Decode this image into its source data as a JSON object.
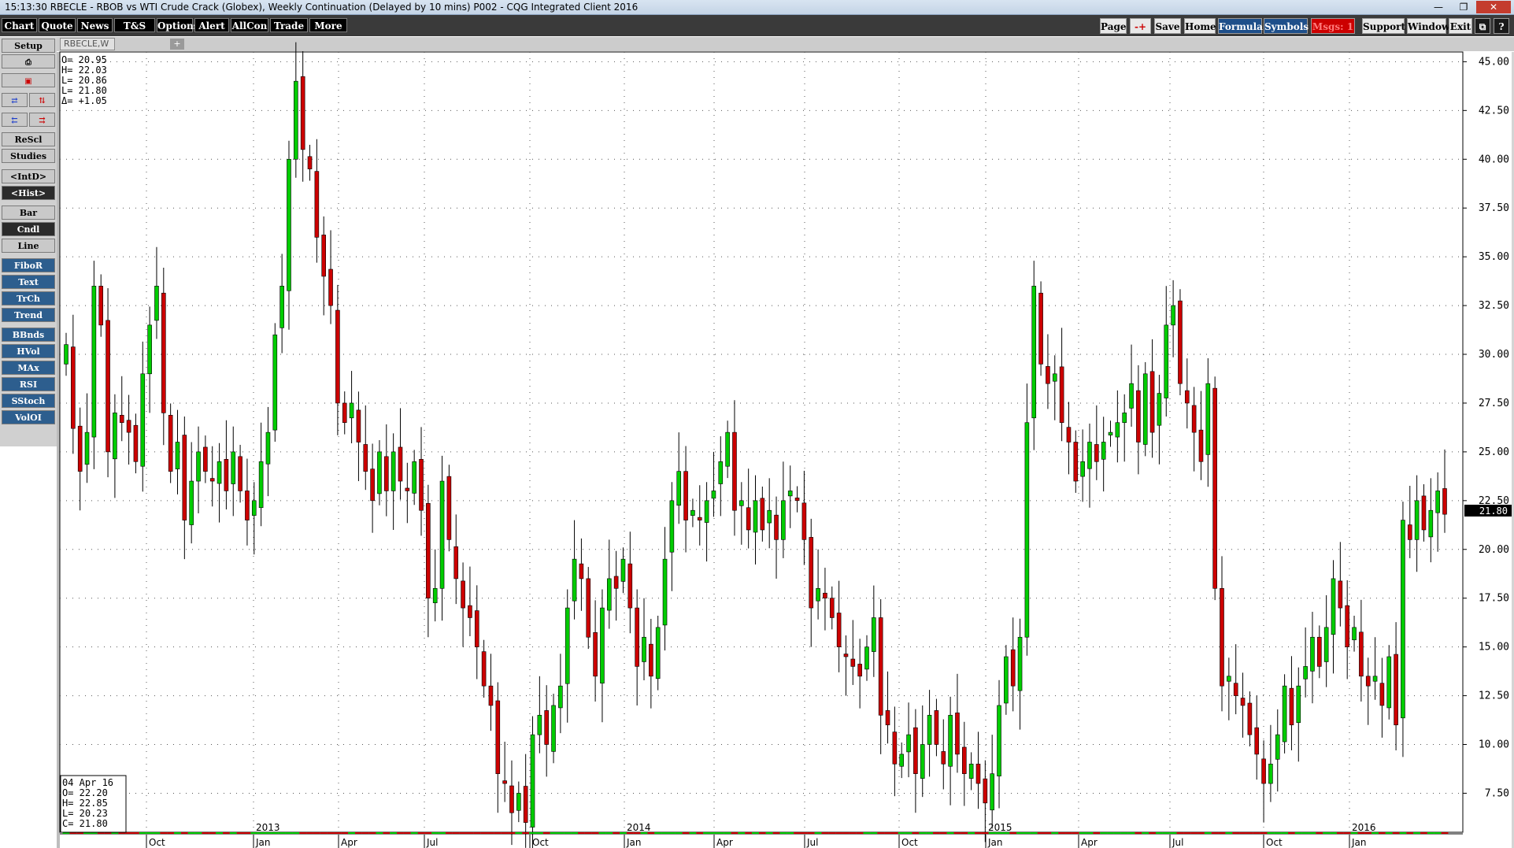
{
  "window": {
    "title": "15:13:30   RBECLE - RBOB vs WTI Crude Crack (Globex), Weekly Continuation (Delayed by 10 mins)   P002 - CQG Integrated Client 2016",
    "controls": [
      "minimize-icon",
      "restore-icon",
      "close-icon"
    ]
  },
  "menubar": {
    "left": [
      "Chart",
      "Quote",
      "News",
      "T&S",
      "Options",
      "Alert",
      "AllCon",
      "Trade",
      "More"
    ],
    "right": {
      "page": "Page",
      "arrows": "-+",
      "save": "Save",
      "home": "Home",
      "formula": "Formula",
      "symbols": "Symbols",
      "msgs": "Msgs: 1",
      "support": "Support",
      "window": "Window",
      "exit": "Exit",
      "restore": "⧉",
      "help": "?"
    }
  },
  "sidebar": {
    "setup": "Setup",
    "print_icon": "printer-icon",
    "rescl": "ReScl",
    "studies": "Studies",
    "intd": "<IntD>",
    "hist": "<Hist>",
    "bar": "Bar",
    "cndl": "Cndl",
    "line": "Line",
    "studies_list": [
      "FiboR",
      "Text",
      "TrCh",
      "Trend",
      "BBnds",
      "HVol",
      "MAx",
      "RSI",
      "SStoch",
      "VolOI"
    ]
  },
  "tab": {
    "symbol": "RBECLE,W",
    "add": "+"
  },
  "ohlc_top": {
    "open": "O=   20.95",
    "high": "H=   22.03",
    "low": "L=   20.86",
    "last": "L=   21.80",
    "delta": "Δ=   +1.05"
  },
  "ohlc_bottom": {
    "date": "04 Apr 16",
    "open": "O=      22.20",
    "high": "H=      22.85",
    "low": "L=      20.23",
    "close": "C=      21.80"
  },
  "last_price": "21.80",
  "colors": {
    "up": "#00cc00",
    "down": "#cc0000",
    "background": "#ffffff",
    "grid": "#000000"
  },
  "chart_data": {
    "type": "candlestick",
    "symbol": "RBECLE",
    "interval": "Weekly",
    "y_ticks": [
      "45.00",
      "42.50",
      "40.00",
      "37.50",
      "35.00",
      "32.50",
      "30.00",
      "27.50",
      "25.00",
      "22.50",
      "20.00",
      "17.50",
      "15.00",
      "12.50",
      "10.00",
      "7.50"
    ],
    "ylim": [
      5.5,
      45.5
    ],
    "x_months": [
      "Oct",
      "Jan",
      "Apr",
      "Jul",
      "Oct",
      "Jan",
      "Apr",
      "Jul",
      "Oct",
      "Jan",
      "Apr",
      "Jul",
      "Oct",
      "Jan"
    ],
    "x_years": [
      "2013",
      "2014",
      "2015",
      "2016"
    ],
    "closes": [
      30.5,
      26.2,
      24.0,
      26.0,
      33.5,
      31.5,
      25.0,
      27.0,
      26.5,
      26.0,
      24.5,
      29.0,
      31.5,
      33.5,
      27.0,
      24.0,
      25.5,
      21.5,
      23.5,
      25.0,
      24.0,
      23.5,
      24.5,
      23.0,
      25.0,
      23.0,
      21.5,
      22.5,
      24.5,
      26.0,
      31.0,
      33.5,
      40.0,
      44.0,
      40.5,
      39.5,
      36.0,
      34.0,
      32.5,
      27.5,
      26.5,
      27.5,
      25.5,
      24.0,
      22.5,
      25.0,
      23.0,
      25.0,
      23.5,
      23.0,
      24.5,
      22.0,
      17.5,
      18.0,
      23.5,
      20.5,
      18.5,
      17.0,
      16.5,
      15.0,
      13.0,
      12.0,
      8.5,
      8.0,
      6.5,
      7.5,
      6.0,
      10.5,
      11.5,
      10.0,
      12.0,
      13.0,
      17.0,
      19.5,
      18.5,
      15.5,
      13.5,
      17.0,
      18.5,
      18.0,
      19.5,
      17.0,
      14.0,
      15.5,
      13.5,
      16.0,
      19.5,
      22.5,
      24.0,
      21.5,
      22.0,
      21.5,
      22.5,
      23.0,
      24.5,
      26.0,
      22.0,
      22.5,
      21.0,
      22.5,
      21.0,
      22.0,
      20.5,
      22.5,
      23.0,
      22.5,
      20.5,
      17.0,
      18.0,
      17.5,
      16.5,
      15.0,
      14.5,
      14.0,
      13.5,
      15.0,
      16.5,
      11.5,
      11.0,
      9.0,
      9.5,
      10.5,
      8.5,
      10.0,
      11.5,
      10.0,
      9.0,
      11.5,
      9.5,
      8.5,
      9.0,
      8.0,
      7.0,
      8.5,
      12.0,
      14.5,
      13.0,
      15.5,
      26.5,
      33.5,
      29.5,
      28.5,
      29.0,
      26.5,
      25.5,
      23.5,
      24.5,
      25.5,
      24.5,
      25.5,
      26.0,
      26.5,
      27.0,
      28.5,
      25.5,
      29.0,
      26.0,
      28.0,
      31.5,
      32.5,
      28.5,
      27.5,
      26.0,
      24.5,
      28.5,
      18.0,
      13.0,
      13.5,
      12.5,
      12.0,
      10.5,
      9.5,
      8.0,
      9.0,
      10.5,
      13.0,
      11.0,
      13.0,
      14.0,
      15.5,
      14.0,
      16.0,
      18.5,
      17.0,
      15.0,
      16.0,
      13.5,
      13.0,
      13.5,
      12.0,
      14.5,
      11.0,
      21.5,
      20.5,
      22.5,
      21.0,
      22.0,
      23.0,
      21.8
    ]
  }
}
